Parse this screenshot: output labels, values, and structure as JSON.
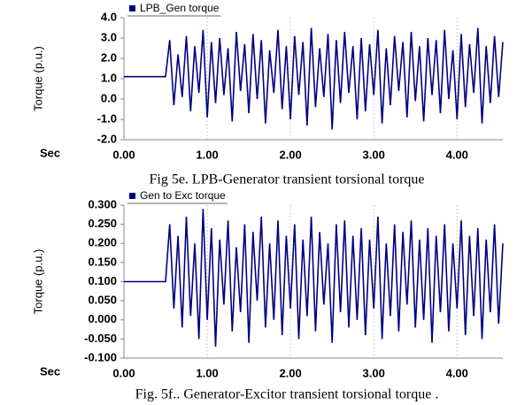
{
  "chart_data": [
    {
      "type": "line",
      "caption": "Fig 5e.   LPB-Generator transient torsional torque",
      "xlabel": "Sec",
      "ylabel": "Torque (p.u.)",
      "xlim": [
        0,
        4.55
      ],
      "ylim": [
        -2,
        4
      ],
      "grid": true,
      "xticks": [
        {
          "value": 0,
          "label": "0.00"
        },
        {
          "value": 1,
          "label": "1.00"
        },
        {
          "value": 2,
          "label": "2.00"
        },
        {
          "value": 3,
          "label": "3.00"
        },
        {
          "value": 4,
          "label": "4.00"
        }
      ],
      "yticks": [
        {
          "value": -2,
          "label": "-2.0"
        },
        {
          "value": -1,
          "label": "-1.0"
        },
        {
          "value": 0,
          "label": "0.0"
        },
        {
          "value": 1,
          "label": "1.0"
        },
        {
          "value": 2,
          "label": "2.0"
        },
        {
          "value": 3,
          "label": "3.0"
        },
        {
          "value": 4,
          "label": "4.0"
        }
      ],
      "x": [
        0,
        0.5,
        0.55,
        0.6,
        0.65,
        0.7,
        0.75,
        0.8,
        0.85,
        0.9,
        0.95,
        1.0,
        1.05,
        1.1,
        1.15,
        1.2,
        1.25,
        1.3,
        1.35,
        1.4,
        1.45,
        1.5,
        1.55,
        1.6,
        1.65,
        1.7,
        1.75,
        1.8,
        1.85,
        1.9,
        1.95,
        2.0,
        2.05,
        2.1,
        2.15,
        2.2,
        2.25,
        2.3,
        2.35,
        2.4,
        2.45,
        2.5,
        2.55,
        2.6,
        2.65,
        2.7,
        2.75,
        2.8,
        2.85,
        2.9,
        2.95,
        3.0,
        3.05,
        3.1,
        3.15,
        3.2,
        3.25,
        3.3,
        3.35,
        3.4,
        3.45,
        3.5,
        3.55,
        3.6,
        3.65,
        3.7,
        3.75,
        3.8,
        3.85,
        3.9,
        3.95,
        4.0,
        4.05,
        4.1,
        4.15,
        4.2,
        4.25,
        4.3,
        4.35,
        4.4,
        4.45,
        4.5,
        4.55
      ],
      "series": [
        {
          "name": "LPB_Gen  torque",
          "color": "#000080",
          "values": [
            1.1,
            1.1,
            2.9,
            -0.3,
            2.2,
            0.1,
            3.1,
            -0.6,
            2.6,
            0.3,
            3.4,
            -0.9,
            2.8,
            -0.2,
            3.0,
            0.2,
            2.5,
            -1.1,
            3.3,
            0.4,
            2.7,
            -0.7,
            3.2,
            0.0,
            2.9,
            -1.2,
            2.4,
            0.3,
            3.4,
            -0.5,
            2.6,
            -1.0,
            3.1,
            0.2,
            2.8,
            -1.3,
            3.5,
            -0.4,
            2.5,
            0.1,
            3.2,
            -1.5,
            2.9,
            -0.2,
            3.3,
            0.3,
            2.6,
            -1.0,
            3.0,
            -0.6,
            2.7,
            0.2,
            3.4,
            -1.2,
            2.5,
            -0.3,
            3.1,
            0.4,
            2.8,
            -0.9,
            3.3,
            -0.1,
            2.6,
            -1.1,
            3.0,
            0.2,
            2.9,
            -0.7,
            3.4,
            0.0,
            2.4,
            -1.0,
            3.2,
            -0.4,
            2.7,
            0.3,
            3.5,
            -1.2,
            2.6,
            -0.2,
            3.1,
            0.1,
            2.8
          ]
        }
      ]
    },
    {
      "type": "line",
      "caption": "Fig.  5f..  Generator-Excitor transient torsional torque .",
      "xlabel": "Sec",
      "ylabel": "Torque (p.u.)",
      "xlim": [
        0,
        4.55
      ],
      "ylim": [
        -0.1,
        0.3
      ],
      "grid": true,
      "xticks": [
        {
          "value": 0,
          "label": "0.00"
        },
        {
          "value": 1,
          "label": "1.00"
        },
        {
          "value": 2,
          "label": "2.00"
        },
        {
          "value": 3,
          "label": "3.00"
        },
        {
          "value": 4,
          "label": "4.00"
        }
      ],
      "yticks": [
        {
          "value": -0.1,
          "label": "-0.100"
        },
        {
          "value": -0.05,
          "label": "-0.050"
        },
        {
          "value": 0,
          "label": "0.000"
        },
        {
          "value": 0.05,
          "label": "0.050"
        },
        {
          "value": 0.1,
          "label": "0.100"
        },
        {
          "value": 0.15,
          "label": "0.150"
        },
        {
          "value": 0.2,
          "label": "0.200"
        },
        {
          "value": 0.25,
          "label": "0.250"
        },
        {
          "value": 0.3,
          "label": "0.300"
        }
      ],
      "x": [
        0,
        0.5,
        0.55,
        0.6,
        0.65,
        0.7,
        0.75,
        0.8,
        0.85,
        0.9,
        0.95,
        1.0,
        1.05,
        1.1,
        1.15,
        1.2,
        1.25,
        1.3,
        1.35,
        1.4,
        1.45,
        1.5,
        1.55,
        1.6,
        1.65,
        1.7,
        1.75,
        1.8,
        1.85,
        1.9,
        1.95,
        2.0,
        2.05,
        2.1,
        2.15,
        2.2,
        2.25,
        2.3,
        2.35,
        2.4,
        2.45,
        2.5,
        2.55,
        2.6,
        2.65,
        2.7,
        2.75,
        2.8,
        2.85,
        2.9,
        2.95,
        3.0,
        3.05,
        3.1,
        3.15,
        3.2,
        3.25,
        3.3,
        3.35,
        3.4,
        3.45,
        3.5,
        3.55,
        3.6,
        3.65,
        3.7,
        3.75,
        3.8,
        3.85,
        3.9,
        3.95,
        4.0,
        4.05,
        4.1,
        4.15,
        4.2,
        4.25,
        4.3,
        4.35,
        4.4,
        4.45,
        4.5,
        4.55
      ],
      "series": [
        {
          "name": "Gen to Exc torque",
          "color": "#000080",
          "values": [
            0.1,
            0.1,
            0.25,
            0.03,
            0.22,
            -0.02,
            0.27,
            0.01,
            0.2,
            -0.05,
            0.29,
            0.0,
            0.24,
            -0.07,
            0.21,
            0.04,
            0.26,
            -0.03,
            0.19,
            0.02,
            0.25,
            -0.06,
            0.23,
            0.05,
            0.27,
            -0.02,
            0.2,
            0.0,
            0.26,
            -0.04,
            0.22,
            0.03,
            0.25,
            -0.05,
            0.21,
            0.01,
            0.27,
            -0.03,
            0.23,
            0.04,
            0.2,
            -0.06,
            0.25,
            0.02,
            0.26,
            -0.02,
            0.22,
            0.0,
            0.24,
            -0.04,
            0.21,
            0.03,
            0.27,
            -0.05,
            0.2,
            0.01,
            0.25,
            -0.03,
            0.23,
            0.04,
            0.26,
            -0.02,
            0.21,
            0.0,
            0.24,
            -0.06,
            0.22,
            0.02,
            0.25,
            -0.03,
            0.2,
            0.03,
            0.26,
            -0.04,
            0.22,
            0.01,
            0.24,
            -0.05,
            0.21,
            0.02,
            0.25,
            -0.01,
            0.2
          ]
        }
      ]
    }
  ]
}
